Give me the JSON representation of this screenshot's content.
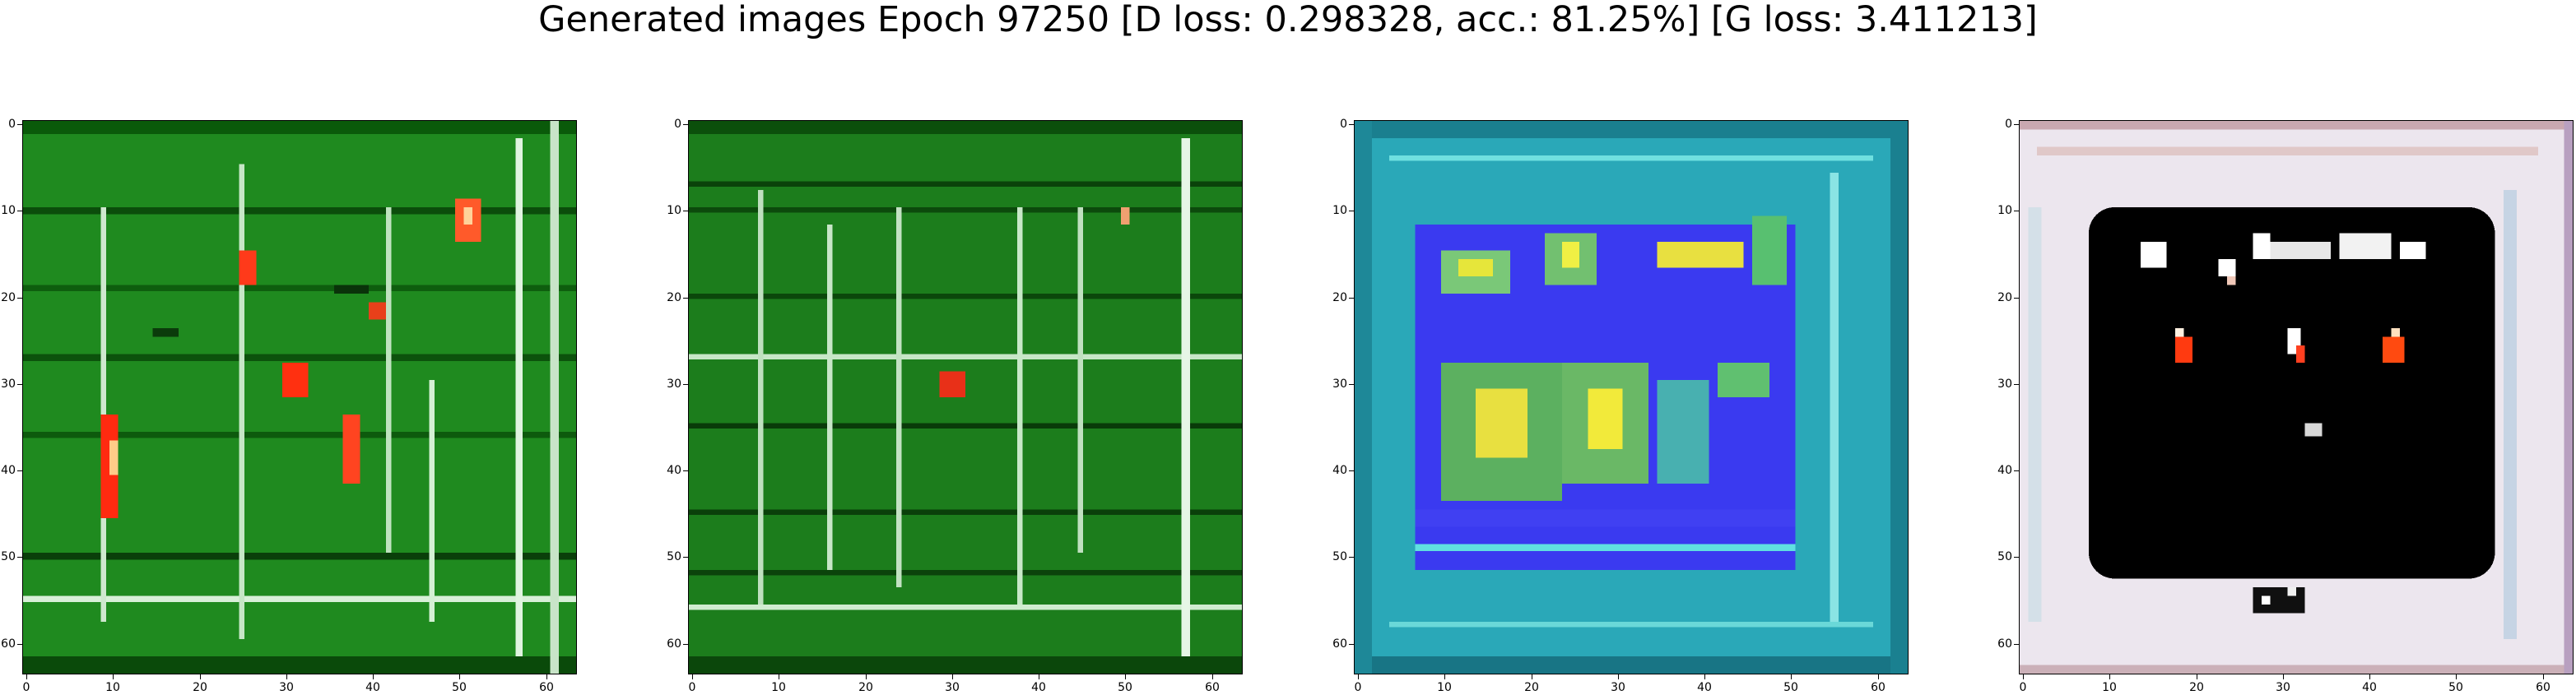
{
  "figure": {
    "title": "Generated images Epoch 97250 [D loss: 0.298328, acc.: 81.25%] [G loss: 3.411213]"
  },
  "axis_ticks": {
    "x": [
      "0",
      "10",
      "20",
      "30",
      "40",
      "50",
      "60"
    ],
    "y": [
      "0",
      "10",
      "20",
      "30",
      "40",
      "50",
      "60"
    ],
    "values": [
      0,
      10,
      20,
      30,
      40,
      50,
      60
    ],
    "image_extent": [
      -0.5,
      63.5
    ]
  },
  "panels": [
    {
      "name": "generated-image-1",
      "description_color": "#1f8a1f",
      "dominant": "green"
    },
    {
      "name": "generated-image-2",
      "description_color": "#1c7d1c",
      "dominant": "green"
    },
    {
      "name": "generated-image-3",
      "description_color": "#3a3af0",
      "dominant": "blue-cyan"
    },
    {
      "name": "generated-image-4",
      "description_color": "#000000",
      "dominant": "black-white"
    }
  ]
}
